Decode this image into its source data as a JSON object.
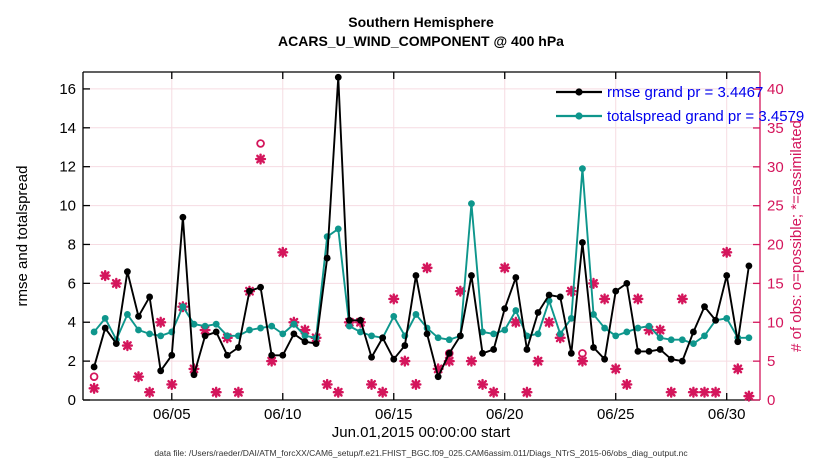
{
  "figure": {
    "title": "Southern Hemisphere",
    "subtitle": "ACARS_U_WIND_COMPONENT @ 400 hPa",
    "footer": "data file: /Users/raeder/DAI/ATM_forcXX/CAM6_setup/f.e21.FHIST_BGC.f09_025.CAM6assim.011/Diags_NTrS_2015-06/obs_diag_output.nc"
  },
  "colors": {
    "rmse": "#000000",
    "totalspread": "#0e968c",
    "obs": "#d4165c",
    "legend_text": "#0000ee",
    "grid": "#f6dce2",
    "axis": "#000000",
    "footer_text": "#333333"
  },
  "chart_data": {
    "type": "line",
    "title": "Southern Hemisphere",
    "subtitle": "ACARS_U_WIND_COMPONENT @ 400 hPa",
    "xlabel": "Jun.01,2015 00:00:00 start",
    "ylabel_left": "rmse and totalspread",
    "ylabel_right": "# of obs: o=possible; *=assimilated",
    "legend": [
      {
        "label": "rmse grand pr = 3.4467",
        "series": "rmse"
      },
      {
        "label": "totalspread grand pr = 3.4579",
        "series": "totalspread"
      }
    ],
    "axes": {
      "x": {
        "min_day": 1.0,
        "max_day": 31.5,
        "tick_days": [
          5,
          10,
          15,
          20,
          25,
          30
        ],
        "tick_labels": [
          "06/05",
          "06/10",
          "06/15",
          "06/20",
          "06/25",
          "06/30"
        ]
      },
      "left": {
        "min": 0,
        "max": 16.87,
        "ticks": [
          0,
          2,
          4,
          6,
          8,
          10,
          12,
          14,
          16
        ]
      },
      "right": {
        "min": 0,
        "max": 42.2,
        "ticks": [
          0,
          5,
          10,
          15,
          20,
          25,
          30,
          35,
          40
        ]
      }
    },
    "x_days": [
      1.5,
      2,
      2.5,
      3,
      3.5,
      4,
      4.5,
      5,
      5.5,
      6,
      6.5,
      7,
      7.5,
      8,
      8.5,
      9,
      9.5,
      10,
      10.5,
      11,
      11.5,
      12,
      12.5,
      13,
      13.5,
      14,
      14.5,
      15,
      15.5,
      16,
      16.5,
      17,
      17.5,
      18,
      18.5,
      19,
      19.5,
      20,
      20.5,
      21,
      21.5,
      22,
      22.5,
      23,
      23.5,
      24,
      24.5,
      25,
      25.5,
      26,
      26.5,
      27,
      27.5,
      28,
      28.5,
      29,
      29.5,
      30,
      30.5,
      31
    ],
    "series": [
      {
        "name": "rmse",
        "axis": "left",
        "values": [
          1.7,
          3.7,
          2.9,
          6.6,
          4.3,
          5.3,
          1.5,
          2.3,
          9.4,
          1.3,
          3.3,
          3.5,
          2.3,
          2.7,
          5.6,
          5.8,
          2.3,
          2.3,
          3.4,
          3.0,
          2.9,
          7.3,
          16.6,
          4.1,
          4.1,
          2.2,
          3.2,
          2.1,
          2.8,
          6.4,
          3.4,
          1.2,
          2.4,
          3.3,
          6.4,
          2.4,
          2.6,
          4.7,
          6.3,
          2.6,
          4.5,
          5.4,
          5.3,
          2.4,
          8.1,
          2.7,
          2.1,
          5.6,
          6.0,
          2.5,
          2.5,
          2.6,
          2.1,
          2.0,
          3.5,
          4.8,
          4.1,
          6.4,
          3.0,
          6.9
        ]
      },
      {
        "name": "totalspread",
        "axis": "left",
        "values": [
          3.5,
          4.2,
          3.1,
          4.4,
          3.6,
          3.4,
          3.3,
          3.5,
          4.8,
          3.9,
          3.8,
          3.9,
          3.3,
          3.3,
          3.6,
          3.7,
          3.8,
          3.4,
          3.9,
          3.3,
          3.2,
          8.4,
          8.8,
          3.8,
          3.5,
          3.3,
          3.2,
          4.3,
          3.3,
          4.4,
          3.7,
          3.2,
          3.1,
          3.3,
          10.1,
          3.5,
          3.4,
          3.6,
          4.6,
          3.3,
          3.4,
          5.1,
          3.4,
          4.2,
          11.9,
          4.4,
          3.7,
          3.3,
          3.5,
          3.7,
          3.8,
          3.2,
          3.1,
          3.1,
          2.9,
          3.3,
          4.1,
          4.2,
          3.2,
          3.2
        ]
      }
    ],
    "obs_counts": {
      "axis": "right",
      "assimilated_marker": "asterisk",
      "possible_marker": "open-circle",
      "assimilated": [
        1.5,
        16,
        15,
        7,
        3,
        1,
        10,
        2,
        12,
        4,
        9,
        1,
        8,
        1,
        14,
        31,
        5,
        19,
        10,
        9,
        8,
        2,
        1,
        10,
        10,
        2,
        1,
        13,
        5,
        2,
        17,
        4,
        5,
        14,
        5,
        2,
        1,
        17,
        10,
        1,
        5,
        10,
        8,
        14,
        5,
        15,
        13,
        4,
        2,
        13,
        9,
        9,
        1,
        13,
        1,
        1,
        1,
        19,
        4,
        0.5
      ],
      "possible": [
        3,
        16,
        15,
        7,
        3,
        1,
        10,
        2,
        12,
        4,
        9,
        1,
        8,
        1,
        14,
        33,
        5,
        19,
        10,
        9,
        8,
        2,
        1,
        10,
        10,
        2,
        1,
        13,
        5,
        2,
        17,
        4,
        6,
        14,
        5,
        2,
        1,
        17,
        10,
        1,
        5,
        10,
        8,
        14,
        6,
        15,
        13,
        4,
        2,
        13,
        9,
        9,
        1,
        13,
        1,
        1,
        1,
        19,
        4,
        0.5
      ]
    }
  }
}
